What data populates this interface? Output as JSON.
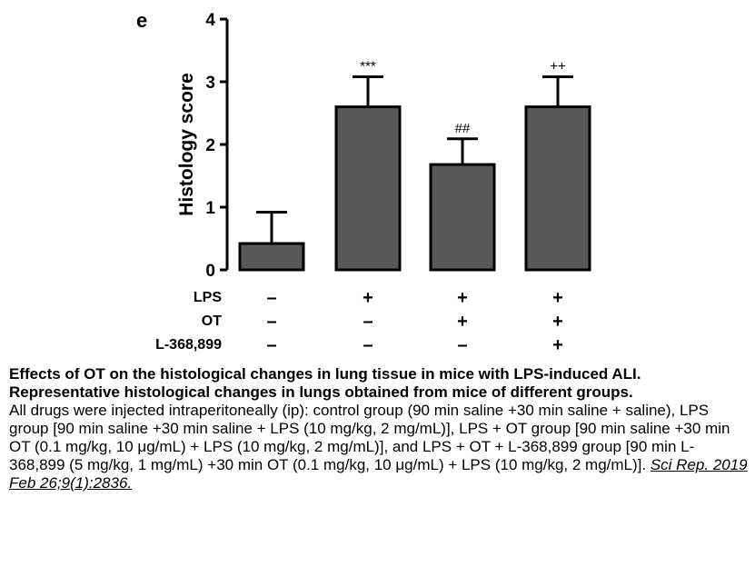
{
  "chart_data": {
    "type": "bar",
    "panel_label": "e",
    "ylabel": "Histology score",
    "ylim": [
      0,
      4
    ],
    "yticks": [
      0,
      1,
      2,
      3,
      4
    ],
    "categories": [
      "Control",
      "LPS",
      "LPS + OT",
      "LPS + OT + L-368,899"
    ],
    "values": [
      0.42,
      2.6,
      1.68,
      2.6
    ],
    "errors": [
      0.5,
      0.48,
      0.41,
      0.48
    ],
    "annotations": [
      "",
      "***",
      "##",
      "++"
    ],
    "treatment_rows": [
      {
        "label": "LPS",
        "signs": [
          "–",
          "+",
          "+",
          "+"
        ]
      },
      {
        "label": "OT",
        "signs": [
          "–",
          "–",
          "+",
          "+"
        ]
      },
      {
        "label": "L-368,899",
        "signs": [
          "–",
          "–",
          "–",
          "+"
        ]
      }
    ],
    "bar_color": "#595959"
  },
  "caption": {
    "title": "Effects of OT on the histological changes in lung tissue in mice with LPS-induced ALI. Representative histological changes in lungs obtained from mice of different groups.",
    "body": "All drugs were injected intraperitoneally (ip): control group (90 min saline +30 min saline + saline), LPS group [90 min saline +30 min saline + LPS (10 mg/kg, 2 mg/mL)], LPS + OT group [90 min saline +30 min OT (0.1 mg/kg, 10 μg/mL) + LPS (10 mg/kg, 2 mg/mL)], and LPS + OT + L-368,899 group [90 min L-368,899 (5 mg/kg, 1 mg/mL) +30 min OT (0.1 mg/kg, 10 μg/mL) + LPS (10 mg/kg, 2 mg/mL)].",
    "source": "Sci Rep. 2019 Feb 26;9(1):2836."
  }
}
